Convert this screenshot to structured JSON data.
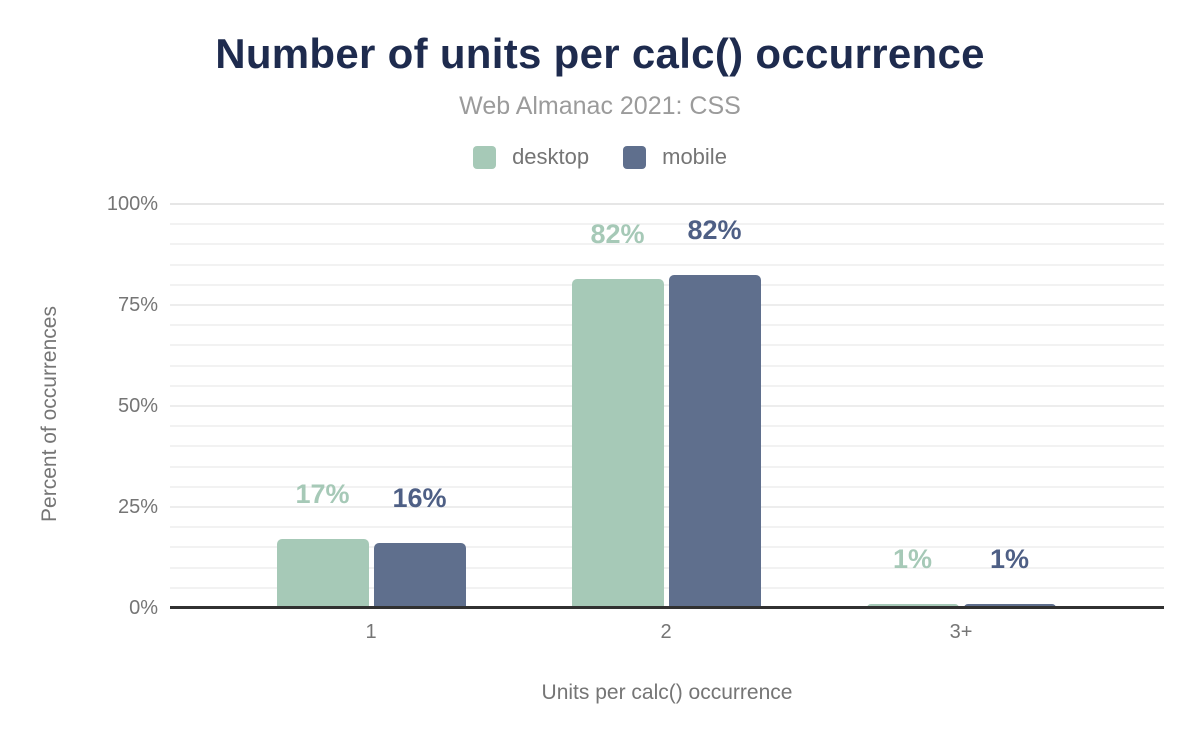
{
  "header": {
    "title": "Number of units per calc() occurrence",
    "subtitle": "Web Almanac 2021: CSS"
  },
  "legend": [
    {
      "label": "desktop",
      "color": "#a6c9b7"
    },
    {
      "label": "mobile",
      "color": "#5f6f8d"
    }
  ],
  "colors": {
    "title": "#1e2b4e",
    "subtitle_text": "#9b9b9b",
    "axis_text": "#757575",
    "desktop_bar": "#a6c9b7",
    "desktop_value_label": "#a6c9b7",
    "mobile_bar": "#5f6f8d",
    "mobile_value_label": "#4e5f85",
    "baseline": "#313131",
    "gridline": "#f2f2f2"
  },
  "chart_data": {
    "type": "bar",
    "title": "Number of units per calc() occurrence",
    "subtitle": "Web Almanac 2021: CSS",
    "categories": [
      "1",
      "2",
      "3+"
    ],
    "series": [
      {
        "name": "desktop",
        "color": "#a6c9b7",
        "label_color": "#a6c9b7",
        "values": [
          17,
          82,
          1
        ],
        "values_rendered": [
          17,
          81.4,
          1
        ],
        "labels": [
          "17%",
          "82%",
          "1%"
        ]
      },
      {
        "name": "mobile",
        "color": "#5f6f8d",
        "label_color": "#4e5f85",
        "values": [
          16,
          82,
          1
        ],
        "values_rendered": [
          16,
          82.4,
          1
        ],
        "labels": [
          "16%",
          "82%",
          "1%"
        ]
      }
    ],
    "xlabel": "Units per calc() occurrence",
    "ylabel": "Percent of occurrences",
    "ylim": [
      0,
      100
    ],
    "yticks": [
      0,
      25,
      50,
      75,
      100
    ],
    "ytick_labels": [
      "0%",
      "25%",
      "50%",
      "75%",
      "100%"
    ],
    "minor_grid_step_pct": 5,
    "grid": "horizontal",
    "legend_position": "top"
  }
}
